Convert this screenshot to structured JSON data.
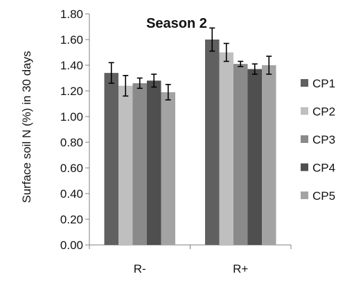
{
  "chart_data": {
    "type": "bar",
    "title": "Season 2",
    "xlabel": "",
    "ylabel": "Surface soil N (%) in 30 days",
    "ylim": [
      0,
      1.8
    ],
    "yticks": [
      "0.00",
      "0.20",
      "0.40",
      "0.60",
      "0.80",
      "1.00",
      "1.20",
      "1.40",
      "1.60",
      "1.80"
    ],
    "ytick_values": [
      0,
      0.2,
      0.4,
      0.6,
      0.8,
      1.0,
      1.2,
      1.4,
      1.6,
      1.8
    ],
    "categories": [
      "R-",
      "R+"
    ],
    "series": [
      {
        "name": "CP1",
        "color": "#606060",
        "values": [
          1.34,
          1.6
        ],
        "errors": [
          0.08,
          0.09
        ]
      },
      {
        "name": "CP2",
        "color": "#bfbfbf",
        "values": [
          1.24,
          1.5
        ],
        "errors": [
          0.08,
          0.07
        ]
      },
      {
        "name": "CP3",
        "color": "#8a8a8a",
        "values": [
          1.26,
          1.41
        ],
        "errors": [
          0.04,
          0.02
        ]
      },
      {
        "name": "CP4",
        "color": "#4f4f4f",
        "values": [
          1.28,
          1.37
        ],
        "errors": [
          0.05,
          0.04
        ]
      },
      {
        "name": "CP5",
        "color": "#a3a3a3",
        "values": [
          1.19,
          1.4
        ],
        "errors": [
          0.06,
          0.07
        ]
      }
    ],
    "grid": false,
    "legend": "right"
  }
}
